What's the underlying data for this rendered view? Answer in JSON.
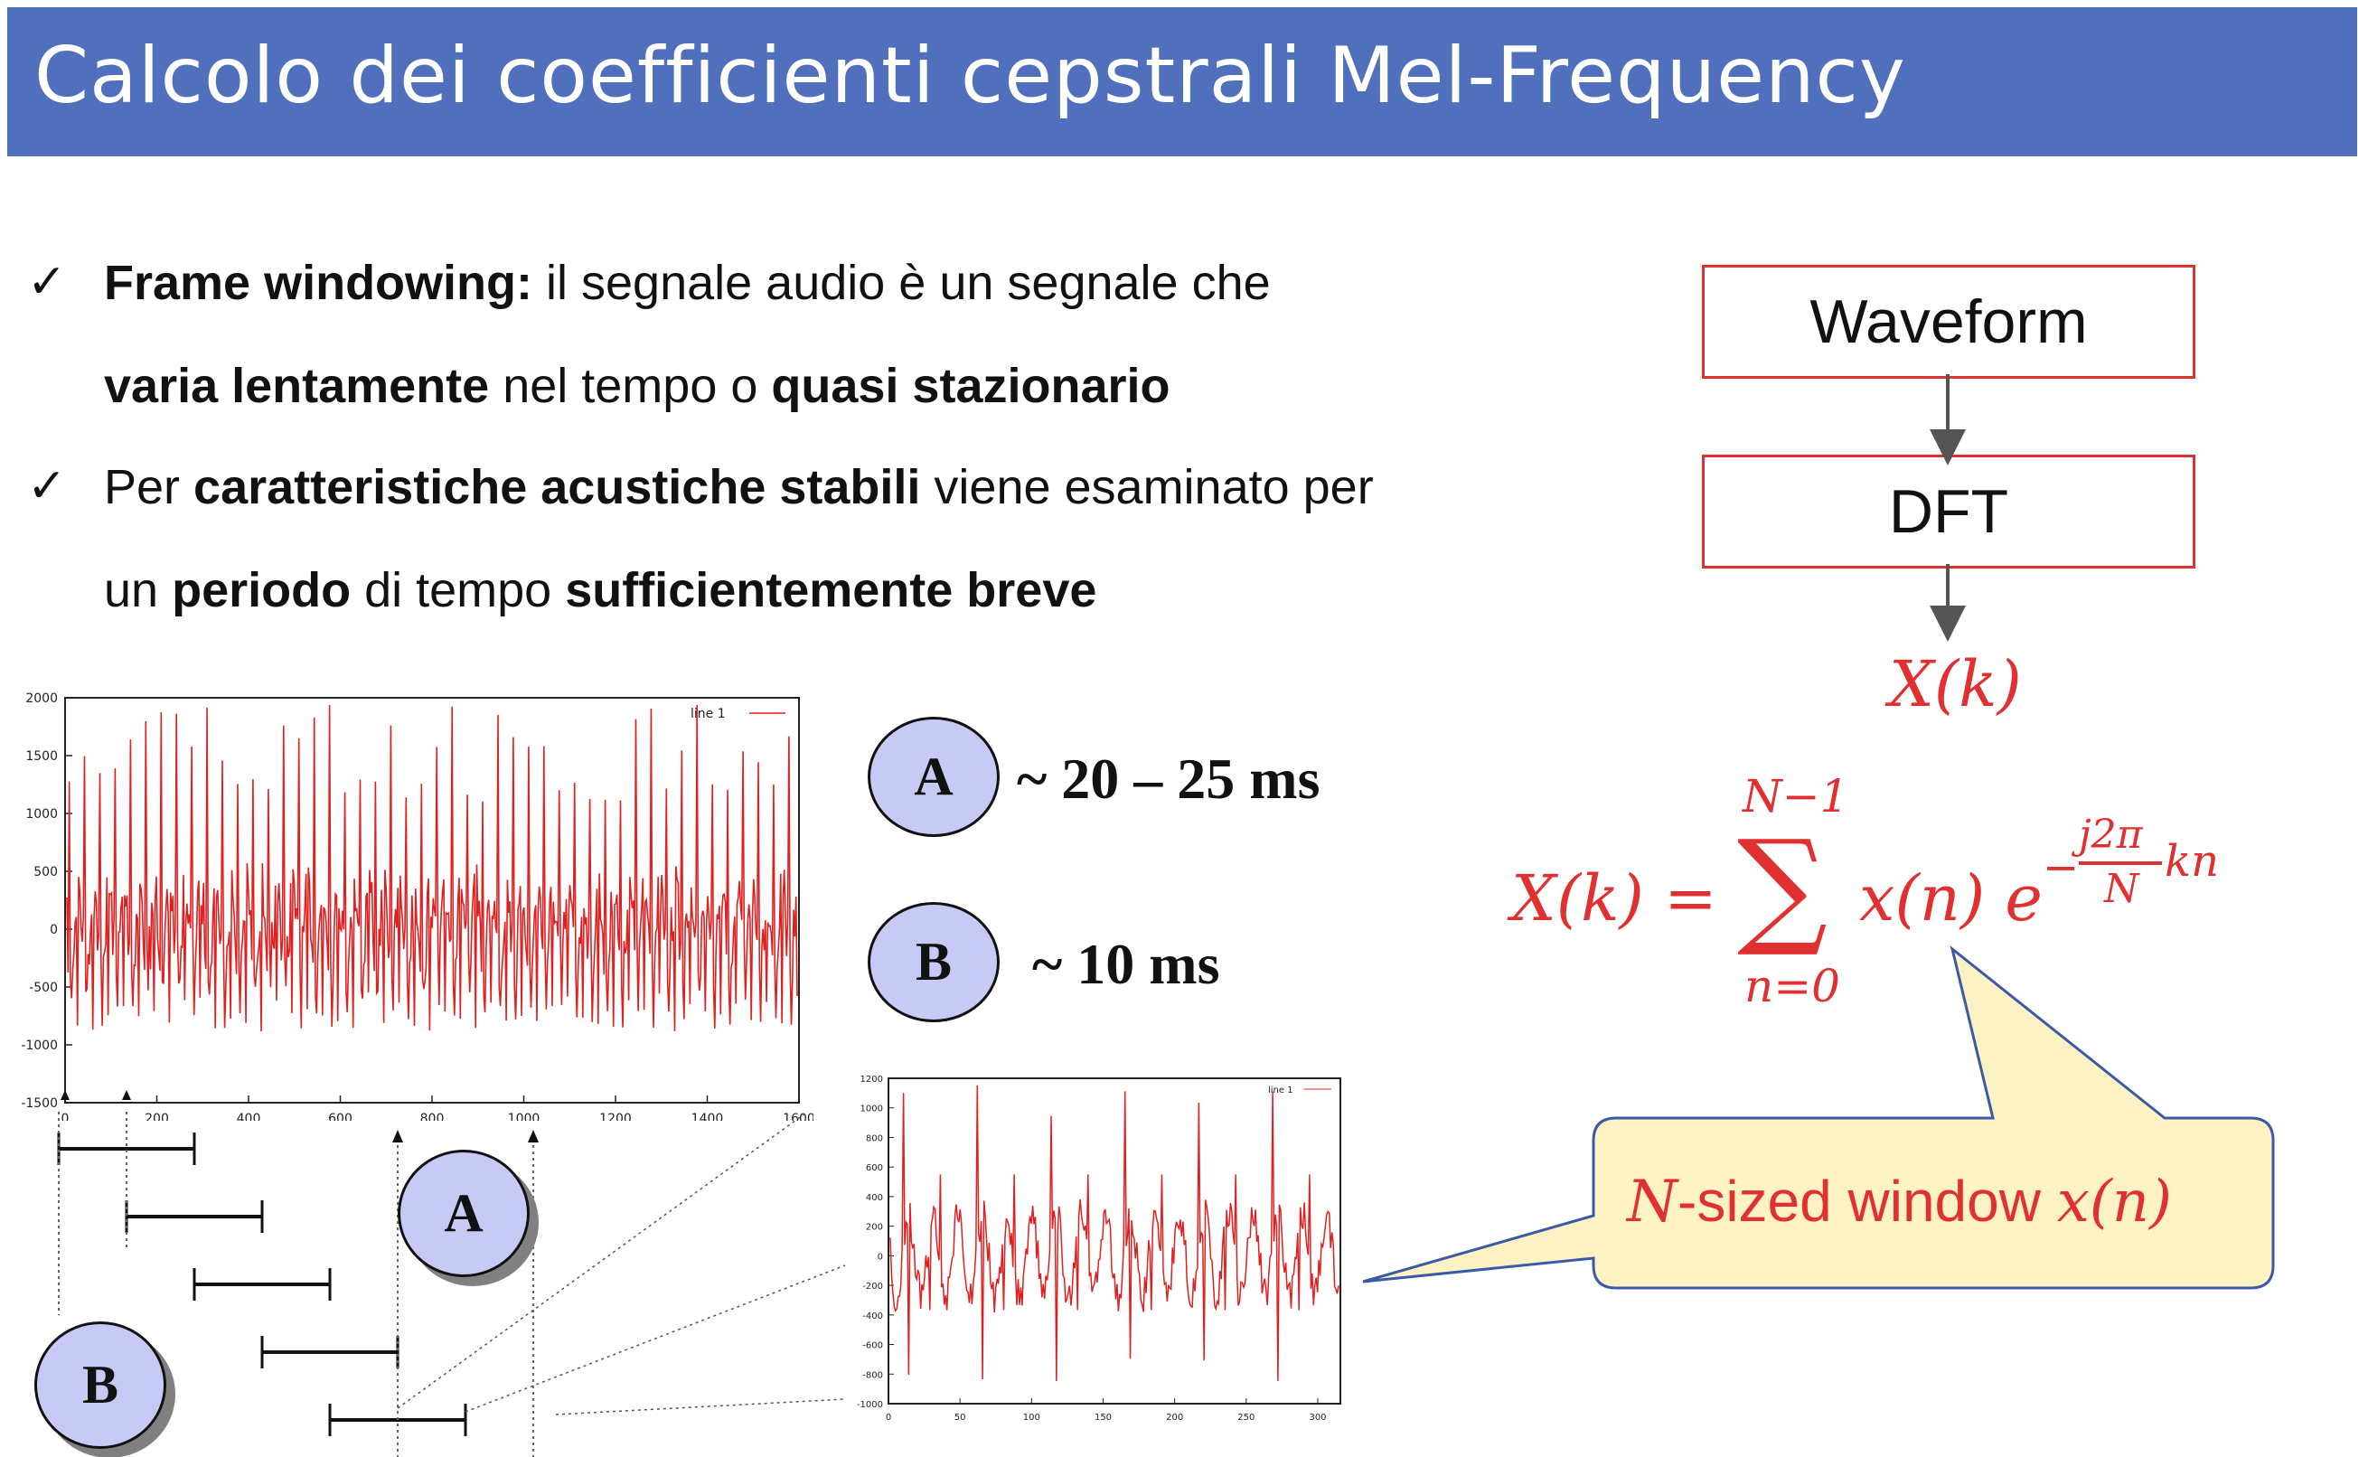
{
  "title": "Calcolo dei coefficienti cepstrali Mel-Frequency",
  "bullets": [
    {
      "line1": [
        {
          "t": "Frame windowing:",
          "b": true
        },
        {
          "t": " il segnale audio è un segnale che",
          "b": false
        }
      ],
      "line2": [
        {
          "t": "varia lentamente",
          "b": true
        },
        {
          "t": " nel tempo o ",
          "b": false
        },
        {
          "t": "quasi stazionario",
          "b": true
        }
      ]
    },
    {
      "line1": [
        {
          "t": "Per ",
          "b": false
        },
        {
          "t": "caratteristiche acustiche stabili",
          "b": true
        },
        {
          "t": " viene esaminato per",
          "b": false
        }
      ],
      "line2": [
        {
          "t": "un ",
          "b": false
        },
        {
          "t": "periodo",
          "b": true
        },
        {
          "t": " di tempo ",
          "b": false
        },
        {
          "t": "sufficientemente breve",
          "b": true
        }
      ]
    }
  ],
  "check_glyph": "✓",
  "flow": {
    "box1": "Waveform",
    "box2": "DFT",
    "output": "X(k)"
  },
  "formula": {
    "lhs": "X(k) =",
    "sum_top": "N−1",
    "sum_sign": "∑",
    "sum_bottom": "n=0",
    "term": "x(n) e",
    "exp_sign": "−",
    "exp_num": "j2π",
    "exp_den": "N",
    "exp_tail": "kn"
  },
  "callout": {
    "var": "N",
    "text": "-sized window ",
    "math": "x(n)"
  },
  "durations": {
    "A": {
      "label": "A",
      "text": "~ 20 – 25 ms"
    },
    "B": {
      "label": "B",
      "text": "~ 10 ms"
    }
  },
  "window_labels": {
    "A": "A",
    "B": "B"
  },
  "plot_main": {
    "legend": "line 1",
    "y_ticks": [
      "2000",
      "1500",
      "1000",
      "500",
      "0",
      "-500",
      "-1000",
      "-1500"
    ],
    "x_ticks": [
      "0",
      "200",
      "400",
      "600",
      "800",
      "1000",
      "1200",
      "1400",
      "1600"
    ]
  },
  "plot_zoom": {
    "legend": "line 1",
    "y_ticks": [
      "1200",
      "1000",
      "800",
      "600",
      "400",
      "200",
      "0",
      "-200",
      "-400",
      "-600",
      "-800",
      "-1000"
    ],
    "x_ticks": [
      "0",
      "50",
      "100",
      "150",
      "200",
      "250",
      "300"
    ]
  },
  "colors": {
    "title_bg": "#5070be",
    "accent": "#e03030",
    "circle_fill": "#c8caf6",
    "callout_fill": "#fdf2c4",
    "callout_stroke": "#3a5aa8"
  }
}
